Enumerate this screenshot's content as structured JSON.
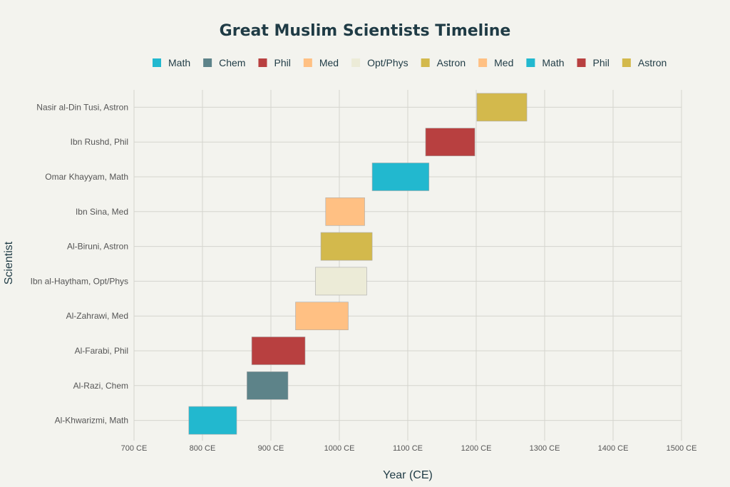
{
  "chart_data": {
    "type": "bar",
    "orientation": "horizontal-range",
    "title": "Great Muslim Scientists Timeline",
    "xlabel": "Year (CE)",
    "ylabel": "Scientist",
    "xlim": [
      700,
      1500
    ],
    "xticks": [
      700,
      800,
      900,
      1000,
      1100,
      1200,
      1300,
      1400,
      1500
    ],
    "xtick_labels": [
      "700 CE",
      "800 CE",
      "900 CE",
      "1000 CE",
      "1100 CE",
      "1200 CE",
      "1300 CE",
      "1400 CE",
      "1500 CE"
    ],
    "grid": true,
    "legend_position": "top",
    "legend": [
      {
        "label": "Math",
        "color": "#22b8cf"
      },
      {
        "label": "Chem",
        "color": "#5d8389"
      },
      {
        "label": "Phil",
        "color": "#b84040"
      },
      {
        "label": "Med",
        "color": "#ffc083"
      },
      {
        "label": "Opt/Phys",
        "color": "#ecebd7"
      },
      {
        "label": "Astron",
        "color": "#d3b94c"
      },
      {
        "label": "Med",
        "color": "#ffc083"
      },
      {
        "label": "Math",
        "color": "#22b8cf"
      },
      {
        "label": "Phil",
        "color": "#b84040"
      },
      {
        "label": "Astron",
        "color": "#d3b94c"
      }
    ],
    "series": [
      {
        "label": "Al-Khwarizmi, Math",
        "start": 780,
        "end": 850,
        "color": "#22b8cf"
      },
      {
        "label": "Al-Razi, Chem",
        "start": 865,
        "end": 925,
        "color": "#5d8389"
      },
      {
        "label": "Al-Farabi, Phil",
        "start": 872,
        "end": 950,
        "color": "#b84040"
      },
      {
        "label": "Al-Zahrawi, Med",
        "start": 936,
        "end": 1013,
        "color": "#ffc083"
      },
      {
        "label": "Ibn al-Haytham, Opt/Phys",
        "start": 965,
        "end": 1040,
        "color": "#ecebd7"
      },
      {
        "label": "Al-Biruni, Astron",
        "start": 973,
        "end": 1048,
        "color": "#d3b94c"
      },
      {
        "label": "Ibn Sina, Med",
        "start": 980,
        "end": 1037,
        "color": "#ffc083"
      },
      {
        "label": "Omar Khayyam, Math",
        "start": 1048,
        "end": 1131,
        "color": "#22b8cf"
      },
      {
        "label": "Ibn Rushd, Phil",
        "start": 1126,
        "end": 1198,
        "color": "#b84040"
      },
      {
        "label": "Nasir al-Din Tusi, Astron",
        "start": 1201,
        "end": 1274,
        "color": "#d3b94c"
      }
    ]
  }
}
